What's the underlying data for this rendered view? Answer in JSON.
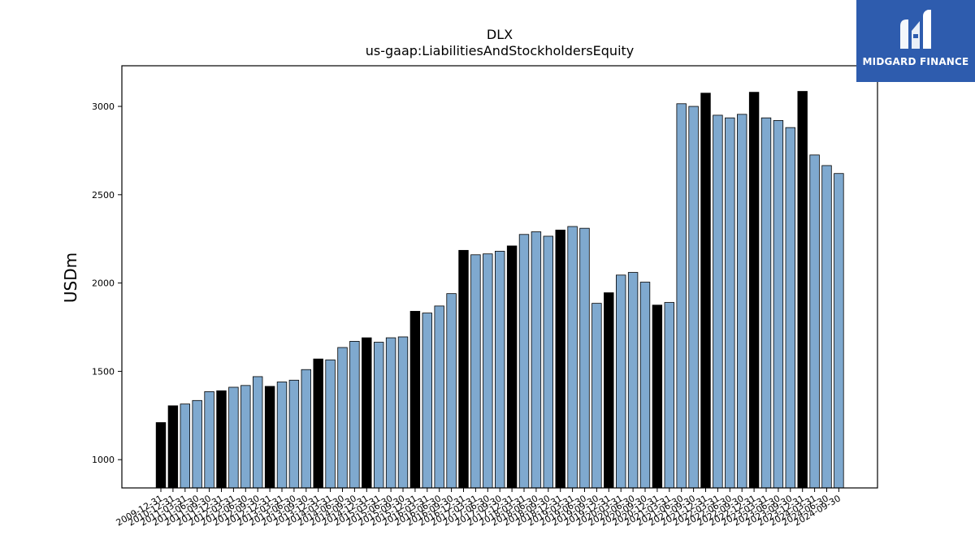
{
  "brand": {
    "name": "MIDGARD FINANCE",
    "bg_color": "#2e5cae"
  },
  "colors": {
    "bar_normal": "#7fa9cf",
    "bar_highlight": "#000000",
    "edge": "#000000"
  },
  "chart_data": {
    "type": "bar",
    "title": "DLX",
    "subtitle": "us-gaap:LiabilitiesAndStockholdersEquity",
    "xlabel": "",
    "ylabel": "USDm",
    "ylim": [
      840,
      3230
    ],
    "yticks": [
      1000,
      1500,
      2000,
      2500,
      3000
    ],
    "grid": false,
    "legend": "none",
    "categories": [
      "2009-12-31",
      "2010-12-31",
      "2011-03-31",
      "2011-06-30",
      "2011-09-30",
      "2011-12-31",
      "2012-03-31",
      "2012-06-30",
      "2012-09-30",
      "2012-12-31",
      "2013-03-31",
      "2013-06-30",
      "2013-09-30",
      "2013-12-31",
      "2014-03-31",
      "2014-06-30",
      "2014-09-30",
      "2014-12-31",
      "2015-03-31",
      "2015-06-30",
      "2015-09-30",
      "2015-12-31",
      "2016-03-31",
      "2016-06-30",
      "2016-09-30",
      "2016-12-31",
      "2017-03-31",
      "2017-06-30",
      "2017-09-30",
      "2017-12-31",
      "2018-03-31",
      "2018-06-30",
      "2018-09-30",
      "2018-12-31",
      "2019-03-31",
      "2019-06-30",
      "2019-09-30",
      "2019-12-31",
      "2020-03-31",
      "2020-06-30",
      "2020-09-30",
      "2020-12-31",
      "2021-03-31",
      "2021-06-30",
      "2021-09-30",
      "2021-12-31",
      "2022-03-31",
      "2022-06-30",
      "2022-09-30",
      "2022-12-31",
      "2023-03-31",
      "2023-06-30",
      "2023-09-30",
      "2023-12-31",
      "2024-03-31",
      "2024-06-30",
      "2024-09-30"
    ],
    "values": [
      1210,
      1305,
      1315,
      1335,
      1385,
      1390,
      1410,
      1420,
      1470,
      1415,
      1440,
      1450,
      1510,
      1570,
      1565,
      1635,
      1670,
      1690,
      1665,
      1690,
      1695,
      1840,
      1830,
      1870,
      1940,
      2185,
      2160,
      2165,
      2180,
      2210,
      2275,
      2290,
      2265,
      2300,
      2320,
      2310,
      1885,
      1945,
      2045,
      2060,
      2005,
      1875,
      1890,
      3015,
      3000,
      3075,
      2950,
      2935,
      2955,
      3080,
      2935,
      2920,
      2880,
      3085,
      2725,
      2665,
      2620
    ],
    "highlight": [
      true,
      true,
      false,
      false,
      false,
      true,
      false,
      false,
      false,
      true,
      false,
      false,
      false,
      true,
      false,
      false,
      false,
      true,
      false,
      false,
      false,
      true,
      false,
      false,
      false,
      true,
      false,
      false,
      false,
      true,
      false,
      false,
      false,
      true,
      false,
      false,
      false,
      true,
      false,
      false,
      false,
      true,
      false,
      false,
      false,
      true,
      false,
      false,
      false,
      true,
      false,
      false,
      false,
      true,
      false,
      false,
      false
    ]
  }
}
